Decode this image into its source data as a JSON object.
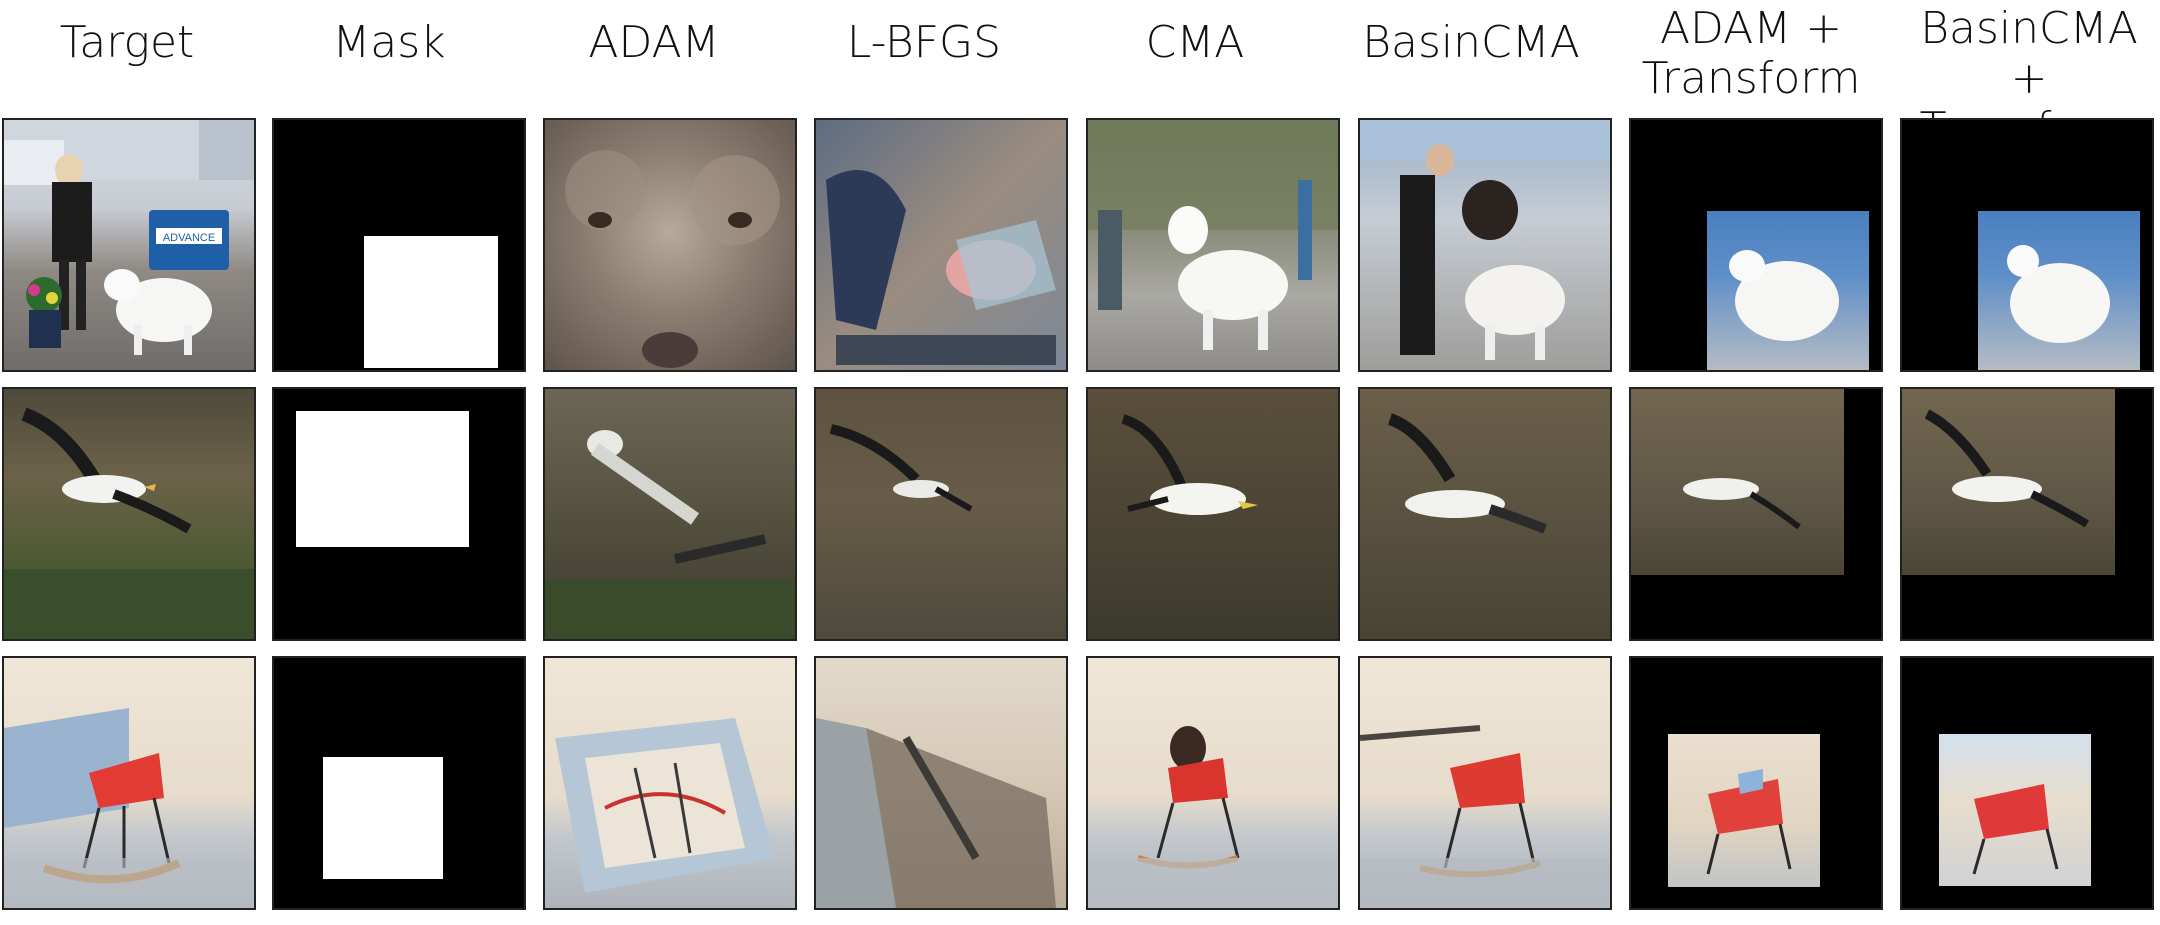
{
  "columns": [
    {
      "label": "Target"
    },
    {
      "label": "Mask"
    },
    {
      "label": "ADAM"
    },
    {
      "label": "L-BFGS"
    },
    {
      "label": "CMA"
    },
    {
      "label": "BasinCMA"
    },
    {
      "label_line1": "ADAM +",
      "label_line2": "Transform"
    },
    {
      "label_line1": "BasinCMA +",
      "label_line2": "Transform"
    }
  ],
  "target_sign_text": "ADVANCE",
  "rows": [
    {
      "subject": "dog"
    },
    {
      "subject": "bird"
    },
    {
      "subject": "chair"
    }
  ]
}
